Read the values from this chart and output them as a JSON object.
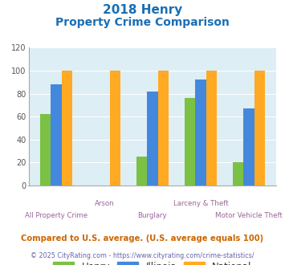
{
  "title_line1": "2018 Henry",
  "title_line2": "Property Crime Comparison",
  "categories": [
    "All Property Crime",
    "Arson",
    "Burglary",
    "Larceny & Theft",
    "Motor Vehicle Theft"
  ],
  "henry": [
    62,
    0,
    25,
    76,
    20
  ],
  "illinois": [
    88,
    0,
    82,
    92,
    67
  ],
  "national": [
    100,
    100,
    100,
    100,
    100
  ],
  "henry_color": "#7bc143",
  "illinois_color": "#4488dd",
  "national_color": "#ffaa22",
  "title_color": "#1a6eb5",
  "bg_color": "#ddeef5",
  "ylim": [
    0,
    120
  ],
  "yticks": [
    0,
    20,
    40,
    60,
    80,
    100,
    120
  ],
  "xlabel_color": "#996699",
  "footer_note": "Compared to U.S. average. (U.S. average equals 100)",
  "footer_copy": "© 2025 CityRating.com - https://www.cityrating.com/crime-statistics/",
  "footer_note_color": "#cc6600",
  "footer_copy_color": "#6666aa",
  "legend_text_color": "#333333",
  "bar_width": 0.22,
  "bar_gap": 0.01
}
